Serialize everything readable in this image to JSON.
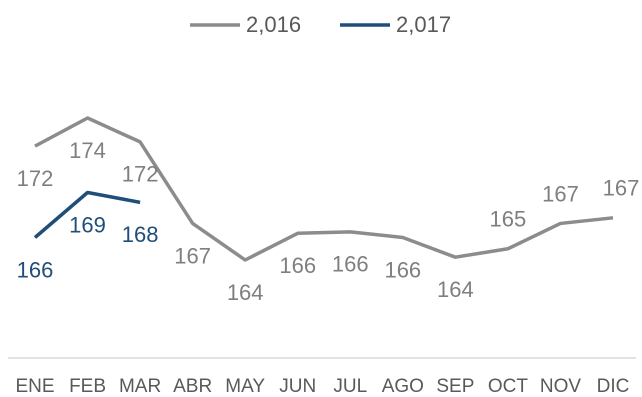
{
  "chart_data": {
    "type": "line",
    "categories": [
      "ENE",
      "FEB",
      "MAR",
      "ABR",
      "MAY",
      "JUN",
      "JUL",
      "AGO",
      "SEP",
      "OCT",
      "NOV",
      "DIC"
    ],
    "series": [
      {
        "name": "2,016",
        "color": "#8c8c8c",
        "values": [
          172.1,
          174.1,
          172.4,
          166.6,
          164.0,
          165.9,
          166.0,
          165.6,
          164.2,
          164.8,
          166.6,
          167.0
        ],
        "value_labels": [
          "172",
          "174",
          "172",
          "167",
          "164",
          "166",
          "166",
          "166",
          "164",
          "165",
          "167",
          "167"
        ]
      },
      {
        "name": "2,017",
        "color": "#1f4e79",
        "values": [
          165.6,
          168.8,
          168.1,
          null,
          null,
          null,
          null,
          null,
          null,
          null,
          null,
          null
        ],
        "value_labels": [
          "166",
          "169",
          "168",
          null,
          null,
          null,
          null,
          null,
          null,
          null,
          null,
          null
        ]
      }
    ]
  }
}
